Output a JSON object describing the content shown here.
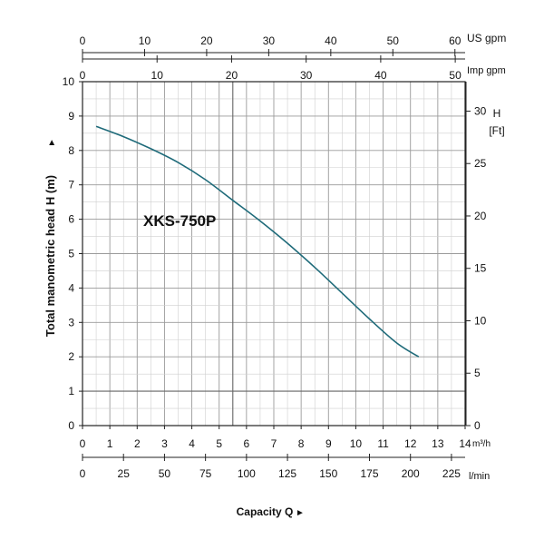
{
  "chart_data": {
    "type": "line",
    "title": "XKS-750P",
    "ylabel": "Total manometric head H (m)",
    "ylabel_marker": "►",
    "xlabel": "Capacity Q",
    "xlabel_marker": "►",
    "grid": true,
    "ylim": [
      0,
      10
    ],
    "xlim": [
      0,
      14
    ],
    "x_unit": "m³/h",
    "x_ticks": [
      "0",
      "1",
      "2",
      "3",
      "4",
      "5",
      "6",
      "7",
      "8",
      "9",
      "10",
      "11",
      "12",
      "13",
      "14"
    ],
    "y_ticks": [
      "0",
      "1",
      "2",
      "3",
      "4",
      "5",
      "6",
      "7",
      "8",
      "9",
      "10"
    ],
    "right_axis": {
      "label_line1": "H",
      "label_line2": "[Ft]",
      "ticks": [
        "0",
        "5",
        "10",
        "15",
        "20",
        "25",
        "30"
      ],
      "ft_per_m": 3.281
    },
    "top_axis_us": {
      "unit": "US gpm",
      "ticks": [
        "0",
        "10",
        "20",
        "30",
        "40",
        "50",
        "60"
      ],
      "gpm_per_m3h": 4.403
    },
    "top_axis_imp": {
      "unit": "Imp gpm",
      "ticks": [
        "0",
        "10",
        "20",
        "30",
        "40",
        "50"
      ],
      "gpm_per_m3h": 3.666
    },
    "bottom_axis_lmin": {
      "unit": "l/min",
      "ticks": [
        "0",
        "25",
        "50",
        "75",
        "100",
        "125",
        "150",
        "175",
        "200",
        "225"
      ],
      "lmin_per_m3h": 16.667
    },
    "series": [
      {
        "color": "#1f6b7a",
        "x": [
          0.5,
          1.5,
          2.5,
          3.5,
          4.5,
          5.5,
          6.5,
          7.5,
          8.5,
          9.5,
          10.5,
          11.5,
          12.3
        ],
        "y": [
          8.7,
          8.4,
          8.05,
          7.65,
          7.15,
          6.55,
          5.95,
          5.3,
          4.6,
          3.85,
          3.1,
          2.4,
          2.0
        ]
      }
    ]
  }
}
